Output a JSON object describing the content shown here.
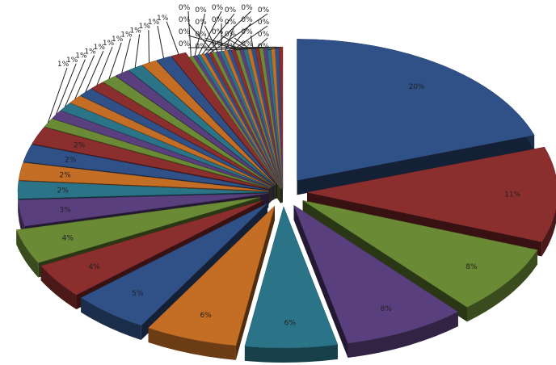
{
  "chart_data": {
    "type": "pie",
    "style": "3d-exploded",
    "title": "",
    "legend": "none",
    "major_values": [
      20,
      11,
      8,
      8,
      6,
      6,
      5,
      4,
      4,
      3,
      2,
      2,
      2,
      2,
      1,
      1,
      1,
      1,
      1,
      1,
      1,
      1,
      1,
      1,
      1,
      1
    ],
    "major_labels": [
      "20%",
      "11%",
      "8%",
      "8%",
      "6%",
      "6%",
      "5%",
      "4%",
      "4%",
      "3%",
      "2%",
      "2%",
      "2%",
      "2%",
      "1%",
      "1%",
      "1%",
      "1%",
      "1%",
      "1%",
      "1%",
      "1%",
      "1%",
      "1%",
      "1%",
      "1%"
    ],
    "minor_labels": [
      "0%",
      "0%",
      "0%",
      "0%",
      "0%",
      "0%",
      "0%",
      "0%",
      "0%",
      "0%",
      "0%",
      "0%",
      "0%",
      "0%",
      "0%",
      "0%",
      "0%",
      "0%",
      "0%",
      "0%",
      "0%",
      "0%",
      "0%",
      "0%"
    ],
    "colors": [
      "#2f5188",
      "#8b2e2e",
      "#6a8a35",
      "#5a3f7e",
      "#2b7487",
      "#c46d25"
    ]
  }
}
